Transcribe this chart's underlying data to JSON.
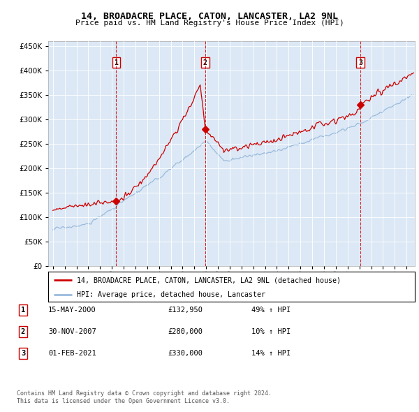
{
  "title": "14, BROADACRE PLACE, CATON, LANCASTER, LA2 9NL",
  "subtitle": "Price paid vs. HM Land Registry's House Price Index (HPI)",
  "legend_property": "14, BROADACRE PLACE, CATON, LANCASTER, LA2 9NL (detached house)",
  "legend_hpi": "HPI: Average price, detached house, Lancaster",
  "footer1": "Contains HM Land Registry data © Crown copyright and database right 2024.",
  "footer2": "This data is licensed under the Open Government Licence v3.0.",
  "sales": [
    {
      "num": 1,
      "date": "15-MAY-2000",
      "price": 132950,
      "pct": "49% ↑ HPI"
    },
    {
      "num": 2,
      "date": "30-NOV-2007",
      "price": 280000,
      "pct": "10% ↑ HPI"
    },
    {
      "num": 3,
      "date": "01-FEB-2021",
      "price": 330000,
      "pct": "14% ↑ HPI"
    }
  ],
  "sale_years": [
    2000.37,
    2007.92,
    2021.08
  ],
  "sale_prices": [
    132950,
    280000,
    330000
  ],
  "ylim": [
    0,
    460000
  ],
  "yticks": [
    0,
    50000,
    100000,
    150000,
    200000,
    250000,
    300000,
    350000,
    400000,
    450000
  ],
  "hpi_color": "#99bbdd",
  "property_color": "#cc0000",
  "dashed_color": "#cc0000",
  "background_color": "#dce8f5",
  "grid_color": "#ffffff",
  "xlim_start": 1994.6,
  "xlim_end": 2025.7
}
